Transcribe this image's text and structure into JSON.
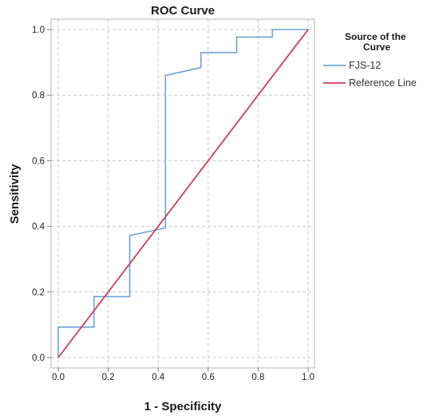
{
  "chart_data": {
    "type": "line",
    "title": "ROC Curve",
    "xlabel": "1 - Specificity",
    "ylabel": "Sensitivity",
    "xlim": [
      0,
      1
    ],
    "ylim": [
      0,
      1
    ],
    "xticks": [
      "0.0",
      "0.2",
      "0.4",
      "0.6",
      "0.8",
      "1.0"
    ],
    "yticks": [
      "0.0",
      "0.2",
      "0.4",
      "0.6",
      "0.8",
      "1.0"
    ],
    "grid": true,
    "legend": {
      "title": "Source of the Curve",
      "title_lines": [
        "Source of the",
        "Curve"
      ],
      "position": "right"
    },
    "series": [
      {
        "name": "FJS-12",
        "color": "#6fa3d8",
        "points": [
          [
            0.0,
            0.0
          ],
          [
            0.0,
            0.093
          ],
          [
            0.143,
            0.093
          ],
          [
            0.143,
            0.186
          ],
          [
            0.286,
            0.186
          ],
          [
            0.286,
            0.372
          ],
          [
            0.429,
            0.395
          ],
          [
            0.429,
            0.86
          ],
          [
            0.571,
            0.884
          ],
          [
            0.571,
            0.93
          ],
          [
            0.714,
            0.93
          ],
          [
            0.714,
            0.977
          ],
          [
            0.857,
            0.977
          ],
          [
            0.857,
            1.0
          ],
          [
            1.0,
            1.0
          ]
        ]
      },
      {
        "name": "Reference Line",
        "color": "#cc3e5c",
        "points": [
          [
            0.0,
            0.0
          ],
          [
            1.0,
            1.0
          ]
        ]
      }
    ]
  }
}
